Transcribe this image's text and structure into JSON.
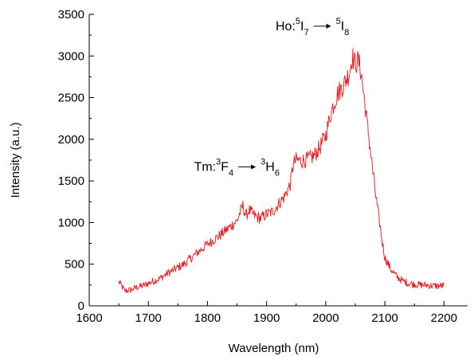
{
  "chart_data": {
    "type": "line",
    "title": "",
    "xlabel": "Wavelength (nm)",
    "ylabel": "Intensity (a.u.)",
    "xlim": [
      1600,
      2240
    ],
    "ylim": [
      0,
      3500
    ],
    "x_ticks": [
      1600,
      1700,
      1800,
      1900,
      2000,
      2100,
      2200
    ],
    "y_ticks": [
      0,
      500,
      1000,
      1500,
      2000,
      2500,
      3000,
      3500
    ],
    "x_tick_labels": [
      "1600",
      "1700",
      "1800",
      "1900",
      "2000",
      "2100",
      "2200"
    ],
    "y_tick_labels": [
      "0",
      "500",
      "1000",
      "1500",
      "2000",
      "2500",
      "3000",
      "3500"
    ],
    "grid": false,
    "legend": "none",
    "series": [
      {
        "color": "#e8141b",
        "points": [
          [
            1650,
            290
          ],
          [
            1660,
            180
          ],
          [
            1670,
            190
          ],
          [
            1680,
            220
          ],
          [
            1690,
            240
          ],
          [
            1700,
            270
          ],
          [
            1710,
            300
          ],
          [
            1720,
            330
          ],
          [
            1730,
            380
          ],
          [
            1740,
            420
          ],
          [
            1750,
            460
          ],
          [
            1760,
            500
          ],
          [
            1770,
            560
          ],
          [
            1780,
            620
          ],
          [
            1790,
            680
          ],
          [
            1800,
            740
          ],
          [
            1810,
            790
          ],
          [
            1820,
            840
          ],
          [
            1830,
            900
          ],
          [
            1840,
            960
          ],
          [
            1850,
            1020
          ],
          [
            1855,
            1120
          ],
          [
            1860,
            1200
          ],
          [
            1865,
            1080
          ],
          [
            1870,
            1150
          ],
          [
            1880,
            1080
          ],
          [
            1890,
            1050
          ],
          [
            1900,
            1100
          ],
          [
            1910,
            1130
          ],
          [
            1920,
            1220
          ],
          [
            1930,
            1310
          ],
          [
            1940,
            1460
          ],
          [
            1945,
            1700
          ],
          [
            1950,
            1750
          ],
          [
            1960,
            1740
          ],
          [
            1970,
            1760
          ],
          [
            1980,
            1800
          ],
          [
            1990,
            1900
          ],
          [
            2000,
            2050
          ],
          [
            2010,
            2350
          ],
          [
            2020,
            2550
          ],
          [
            2030,
            2650
          ],
          [
            2040,
            2800
          ],
          [
            2045,
            3000
          ],
          [
            2050,
            2900
          ],
          [
            2055,
            2950
          ],
          [
            2060,
            2800
          ],
          [
            2065,
            2500
          ],
          [
            2070,
            2200
          ],
          [
            2075,
            1900
          ],
          [
            2080,
            1600
          ],
          [
            2085,
            1300
          ],
          [
            2090,
            1050
          ],
          [
            2095,
            800
          ],
          [
            2100,
            580
          ],
          [
            2110,
            440
          ],
          [
            2120,
            350
          ],
          [
            2130,
            300
          ],
          [
            2140,
            270
          ],
          [
            2150,
            260
          ],
          [
            2160,
            250
          ],
          [
            2170,
            250
          ],
          [
            2180,
            240
          ],
          [
            2190,
            240
          ],
          [
            2200,
            240
          ]
        ]
      }
    ],
    "annotations": [
      {
        "data_x": 1912,
        "data_y": 1620,
        "prefix": "Tm: ",
        "from_sup": "3",
        "from_base": "F",
        "from_sub": "4",
        "to_sup": "3",
        "to_base": "H",
        "to_sub": "6"
      },
      {
        "data_x": 2050,
        "data_y": 3310,
        "prefix": "Ho: ",
        "from_sup": "5",
        "from_base": "I",
        "from_sub": "7",
        "to_sup": "5",
        "to_base": "I",
        "to_sub": "8"
      }
    ]
  }
}
